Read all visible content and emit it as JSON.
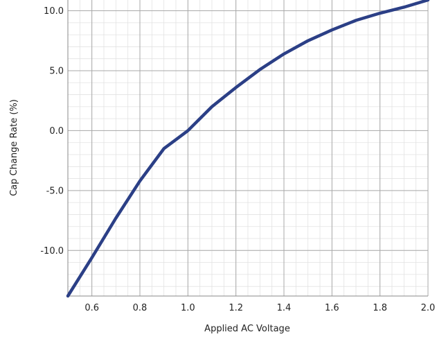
{
  "chart_data": {
    "type": "line",
    "title": "",
    "xlabel": "Applied AC Voltage",
    "ylabel": "Cap Change Rate (%)",
    "xlim": [
      0.5,
      2.0
    ],
    "ylim": [
      -13.8,
      10.9
    ],
    "grid": true,
    "minor_grid": true,
    "xticks": [
      0.6,
      0.8,
      1.0,
      1.2,
      1.4,
      1.6,
      1.8,
      2.0
    ],
    "xtick_labels": [
      "0.6",
      "0.8",
      "1.0",
      "1.2",
      "1.4",
      "1.6",
      "1.8",
      "2.0"
    ],
    "yticks": [
      10.0,
      5.0,
      0.0,
      -5.0,
      -10.0
    ],
    "ytick_labels": [
      "10.0",
      "5.0",
      "0.0",
      "-5.0",
      "-10.0"
    ],
    "series": [
      {
        "color": "#2b3f86",
        "x": [
          0.5,
          0.6,
          0.7,
          0.8,
          0.9,
          1.0,
          1.1,
          1.2,
          1.3,
          1.4,
          1.5,
          1.6,
          1.7,
          1.8,
          1.9,
          2.0
        ],
        "y": [
          -13.8,
          -10.6,
          -7.3,
          -4.2,
          -1.5,
          0.0,
          2.0,
          3.6,
          5.1,
          6.4,
          7.5,
          8.4,
          9.2,
          9.8,
          10.3,
          10.9
        ]
      }
    ]
  }
}
